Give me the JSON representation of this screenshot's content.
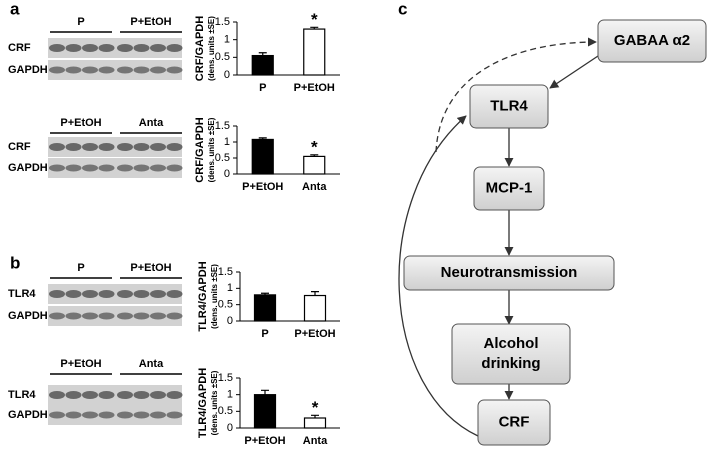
{
  "panel_labels": [
    "a",
    "b",
    "c"
  ],
  "blots": [
    {
      "lanes": [
        "P",
        "P+EtOH"
      ],
      "rows": [
        "CRF",
        "GAPDH"
      ]
    },
    {
      "lanes": [
        "P+EtOH",
        "Anta"
      ],
      "rows": [
        "CRF",
        "GAPDH"
      ]
    },
    {
      "lanes": [
        "P",
        "P+EtOH"
      ],
      "rows": [
        "TLR4",
        "GAPDH"
      ]
    },
    {
      "lanes": [
        "P+EtOH",
        "Anta"
      ],
      "rows": [
        "TLR4",
        "GAPDH"
      ]
    }
  ],
  "chart_data": [
    {
      "type": "bar",
      "y_label": "CRF/GAPDH",
      "y_sublabel": "(dens. units ±SE)",
      "categories": [
        "P",
        "P+EtOH"
      ],
      "values": [
        0.55,
        1.3
      ],
      "errors": [
        0.08,
        0.05
      ],
      "colors": [
        "#000000",
        "#ffffff"
      ],
      "ylim": [
        0,
        1.5
      ],
      "yticks": [
        0,
        0.5,
        1,
        1.5
      ],
      "annotation": {
        "text": "*",
        "category": "P+EtOH"
      }
    },
    {
      "type": "bar",
      "y_label": "CRF/GAPDH",
      "y_sublabel": "(dens. units ±SE)",
      "categories": [
        "P+EtOH",
        "Anta"
      ],
      "values": [
        1.08,
        0.55
      ],
      "errors": [
        0.05,
        0.05
      ],
      "colors": [
        "#000000",
        "#ffffff"
      ],
      "ylim": [
        0,
        1.5
      ],
      "yticks": [
        0,
        0.5,
        1,
        1.5
      ],
      "annotation": {
        "text": "*",
        "category": "Anta"
      }
    },
    {
      "type": "bar",
      "y_label": "TLR4/GAPDH",
      "y_sublabel": "(dens. units ±SE)",
      "categories": [
        "P",
        "P+EtOH"
      ],
      "values": [
        0.8,
        0.78
      ],
      "errors": [
        0.05,
        0.12
      ],
      "colors": [
        "#000000",
        "#ffffff"
      ],
      "ylim": [
        0,
        1.5
      ],
      "yticks": [
        0,
        0.5,
        1,
        1.5
      ]
    },
    {
      "type": "bar",
      "y_label": "TLR4/GAPDH",
      "y_sublabel": "(dens. units ±SE)",
      "categories": [
        "P+EtOH",
        "Anta"
      ],
      "values": [
        1.0,
        0.3
      ],
      "errors": [
        0.13,
        0.08
      ],
      "colors": [
        "#000000",
        "#ffffff"
      ],
      "ylim": [
        0,
        1.5
      ],
      "yticks": [
        0,
        0.5,
        1,
        1.5
      ],
      "annotation": {
        "text": "*",
        "category": "Anta"
      }
    }
  ],
  "diagram": {
    "nodes": [
      {
        "lines": [
          "GABAA α2"
        ]
      },
      {
        "lines": [
          "TLR4"
        ]
      },
      {
        "lines": [
          "MCP-1"
        ]
      },
      {
        "lines": [
          "Neurotransmission"
        ]
      },
      {
        "lines": [
          "Alcohol",
          "drinking"
        ]
      },
      {
        "lines": [
          "CRF"
        ]
      }
    ]
  }
}
